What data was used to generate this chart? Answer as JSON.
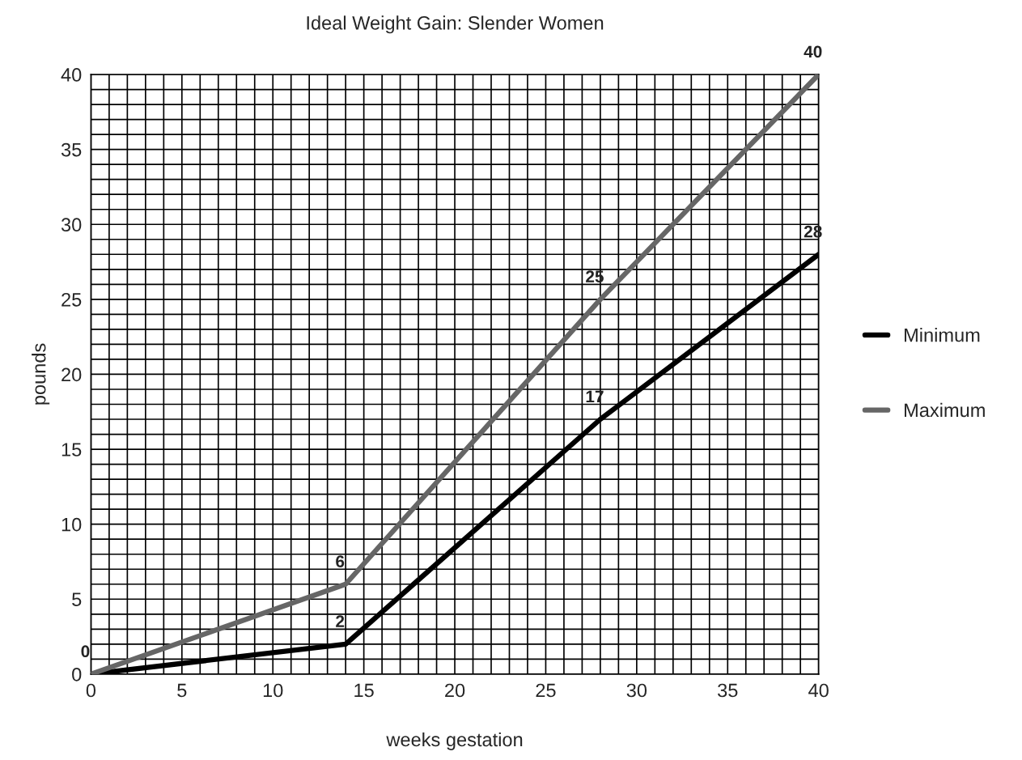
{
  "chart_data": {
    "type": "line",
    "title": "Ideal Weight Gain: Slender Women",
    "xlabel": "weeks gestation",
    "ylabel": "pounds",
    "x": [
      0,
      14,
      28,
      40
    ],
    "series": [
      {
        "name": "Minimum",
        "color": "#000000",
        "values": [
          0,
          2,
          17,
          28
        ],
        "value_labels": [
          "0",
          "2",
          "17",
          "28"
        ]
      },
      {
        "name": "Maximum",
        "color": "#666666",
        "values": [
          0,
          6,
          25,
          40
        ],
        "value_labels": [
          null,
          "6",
          "25",
          "40"
        ]
      }
    ],
    "xlim": [
      0,
      40
    ],
    "ylim": [
      0,
      40
    ],
    "xticks": [
      0,
      {
        "value": 1,
        "label": null
      },
      {
        "value": 2,
        "label": null
      },
      {
        "value": 3,
        "label": null
      },
      {
        "value": 4,
        "label": null
      },
      5,
      {
        "value": 6,
        "label": null
      },
      {
        "value": 7,
        "label": null
      },
      {
        "value": 8,
        "label": null
      },
      {
        "value": 9,
        "label": null
      },
      10,
      {
        "value": 11,
        "label": null
      },
      {
        "value": 12,
        "label": null
      },
      {
        "value": 13,
        "label": null
      },
      {
        "value": 14,
        "label": null
      },
      15,
      {
        "value": 16,
        "label": null
      },
      {
        "value": 17,
        "label": null
      },
      {
        "value": 18,
        "label": null
      },
      {
        "value": 19,
        "label": null
      },
      20,
      {
        "value": 21,
        "label": null
      },
      {
        "value": 22,
        "label": null
      },
      {
        "value": 23,
        "label": null
      },
      {
        "value": 24,
        "label": null
      },
      25,
      {
        "value": 26,
        "label": null
      },
      {
        "value": 27,
        "label": null
      },
      {
        "value": 28,
        "label": null
      },
      {
        "value": 29,
        "label": null
      },
      30,
      {
        "value": 31,
        "label": null
      },
      {
        "value": 32,
        "label": null
      },
      {
        "value": 33,
        "label": null
      },
      {
        "value": 34,
        "label": null
      },
      35,
      {
        "value": 36,
        "label": null
      },
      {
        "value": 37,
        "label": null
      },
      {
        "value": 38,
        "label": null
      },
      {
        "value": 39,
        "label": null
      },
      40
    ],
    "yticks": [
      0,
      {
        "value": 1,
        "label": null
      },
      {
        "value": 2,
        "label": null
      },
      {
        "value": 3,
        "label": null
      },
      {
        "value": 4,
        "label": null
      },
      5,
      {
        "value": 6,
        "label": null
      },
      {
        "value": 7,
        "label": null
      },
      {
        "value": 8,
        "label": null
      },
      {
        "value": 9,
        "label": null
      },
      10,
      {
        "value": 11,
        "label": null
      },
      {
        "value": 12,
        "label": null
      },
      {
        "value": 13,
        "label": null
      },
      {
        "value": 14,
        "label": null
      },
      15,
      {
        "value": 16,
        "label": null
      },
      {
        "value": 17,
        "label": null
      },
      {
        "value": 18,
        "label": null
      },
      {
        "value": 19,
        "label": null
      },
      20,
      {
        "value": 21,
        "label": null
      },
      {
        "value": 22,
        "label": null
      },
      {
        "value": 23,
        "label": null
      },
      {
        "value": 24,
        "label": null
      },
      25,
      {
        "value": 26,
        "label": null
      },
      {
        "value": 27,
        "label": null
      },
      {
        "value": 28,
        "label": null
      },
      {
        "value": 29,
        "label": null
      },
      30,
      {
        "value": 31,
        "label": null
      },
      {
        "value": 32,
        "label": null
      },
      {
        "value": 33,
        "label": null
      },
      {
        "value": 34,
        "label": null
      },
      35,
      {
        "value": 36,
        "label": null
      },
      {
        "value": 37,
        "label": null
      },
      {
        "value": 38,
        "label": null
      },
      {
        "value": 39,
        "label": null
      },
      40
    ],
    "grid": true,
    "legend": "right",
    "marker": "none",
    "line_style": "solid"
  }
}
